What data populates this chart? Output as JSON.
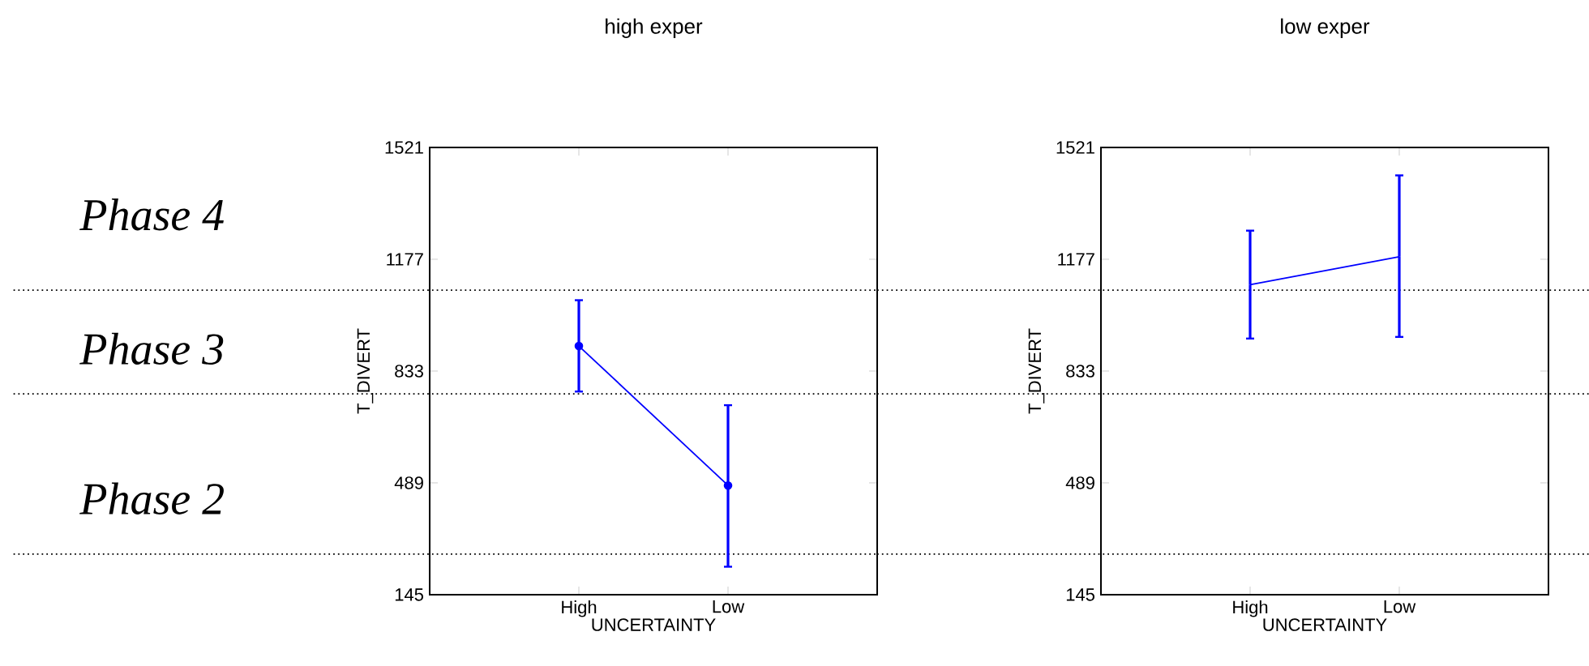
{
  "chart_data": [
    {
      "type": "line",
      "title": "high exper",
      "xlabel": "UNCERTAINTY",
      "ylabel": "T_DIVERT",
      "categories": [
        "High",
        "Low"
      ],
      "series": [
        {
          "color": "#0000ff",
          "values": [
            910,
            481
          ],
          "errors": [
            [
              770,
              1051
            ],
            [
              231,
              728
            ]
          ]
        }
      ],
      "ylim": [
        145,
        1521
      ],
      "yticks": [
        145,
        489,
        833,
        1177,
        1521
      ],
      "marker": "circle",
      "ref_lines": [
        {
          "axis": "y",
          "value": 1082,
          "color": "#000000",
          "line_style": "dotted"
        },
        {
          "axis": "y",
          "value": 763,
          "color": "#000000",
          "line_style": "dotted"
        },
        {
          "axis": "y",
          "value": 270,
          "color": "#000000",
          "line_style": "dotted"
        }
      ],
      "annotations": [
        "Phase 4",
        "Phase 3",
        "Phase 2"
      ]
    },
    {
      "type": "line",
      "title": "low exper",
      "xlabel": "UNCERTAINTY",
      "ylabel": "T_DIVERT",
      "categories": [
        "High",
        "Low"
      ],
      "series": [
        {
          "color": "#0000ff",
          "values": [
            1099,
            1185
          ],
          "errors": [
            [
              933,
              1265
            ],
            [
              938,
              1435
            ]
          ]
        }
      ],
      "ylim": [
        145,
        1521
      ],
      "yticks": [
        145,
        489,
        833,
        1177,
        1521
      ],
      "marker": "none",
      "ref_lines": [
        {
          "axis": "y",
          "value": 1082,
          "color": "#000000",
          "line_style": "dotted"
        },
        {
          "axis": "y",
          "value": 763,
          "color": "#000000",
          "line_style": "dotted"
        },
        {
          "axis": "y",
          "value": 270,
          "color": "#000000",
          "line_style": "dotted"
        }
      ]
    }
  ]
}
